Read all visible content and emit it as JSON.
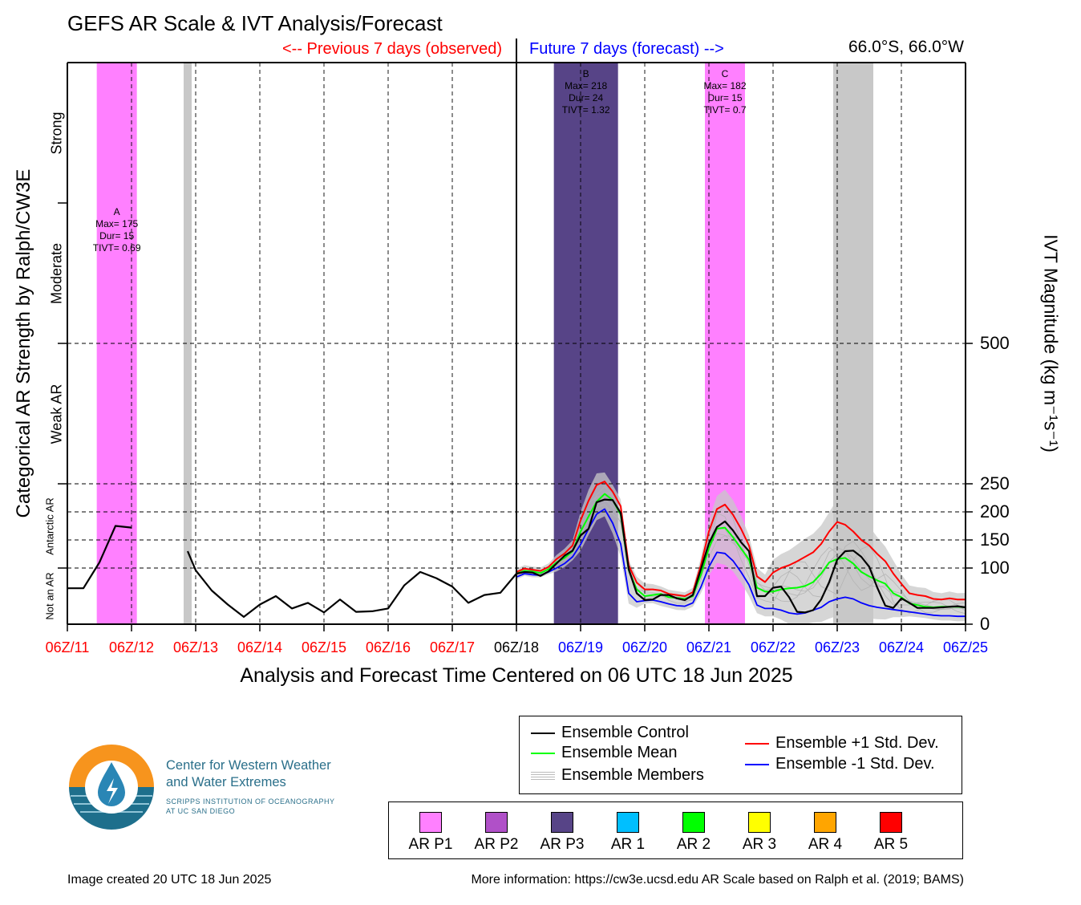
{
  "title": "GEFS AR Scale & IVT Analysis/Forecast",
  "previous_label": "<-- Previous 7 days (observed)",
  "future_label": "Future 7 days (forecast) -->",
  "location": "66.0°S, 66.0°W",
  "footer": {
    "created": "Image created 20 UTC 18 Jun 2025",
    "more_info": "More information: https://cw3e.ucsd.edu AR Scale based on Ralph et al. (2019; BAMS)"
  },
  "logo": {
    "name_line1": "Center for Western Weather",
    "name_line2": "and Water Extremes",
    "sub_line1": "SCRIPPS INSTITUTION OF OCEANOGRAPHY",
    "sub_line2": "AT UC SAN DIEGO"
  },
  "legend": {
    "control": "Ensemble Control",
    "mean": "Ensemble Mean",
    "members": "Ensemble Members",
    "plus_std": "Ensemble +1 Std. Dev.",
    "minus_std": "Ensemble -1 Std. Dev."
  },
  "scale_legend": [
    {
      "label": "AR P1",
      "color": "#ff80ff"
    },
    {
      "label": "AR P2",
      "color": "#b050c8"
    },
    {
      "label": "AR P3",
      "color": "#574487"
    },
    {
      "label": "AR 1",
      "color": "#00bfff"
    },
    {
      "label": "AR 2",
      "color": "#00ff00"
    },
    {
      "label": "AR 3",
      "color": "#ffff00"
    },
    {
      "label": "AR 4",
      "color": "#ffa500"
    },
    {
      "label": "AR 5",
      "color": "#ff0000"
    }
  ],
  "colors": {
    "observed_axis": "#ff0000",
    "forecast_axis": "#0000ff",
    "control": "#000000",
    "mean": "#00ff00",
    "plus_std": "#ff0000",
    "minus_std": "#0000ff",
    "members": "#b4b4b4",
    "spread": "#c8c8c8",
    "no_ar_shade": "#c8c8c8"
  },
  "chart_data": {
    "type": "line",
    "title": "GEFS AR Scale & IVT Analysis/Forecast",
    "xlabel": "Analysis and Forecast Time Centered on 06 UTC 18 Jun 2025",
    "ylabel_left": "Categorical AR Strength by Ralph/CW3E",
    "ylabel_right": "IVT Magnitude (kg m⁻¹s⁻¹)",
    "x_unit": "hours relative to 06Z/18",
    "xlim": [
      -168,
      168
    ],
    "ylim": [
      0,
      1000
    ],
    "y_ticks": [
      0,
      100,
      150,
      200,
      250,
      500
    ],
    "x_ticks": [
      {
        "t": -168,
        "label": "06Z/11",
        "period": "observed"
      },
      {
        "t": -144,
        "label": "06Z/12",
        "period": "observed"
      },
      {
        "t": -120,
        "label": "06Z/13",
        "period": "observed"
      },
      {
        "t": -96,
        "label": "06Z/14",
        "period": "observed"
      },
      {
        "t": -72,
        "label": "06Z/15",
        "period": "observed"
      },
      {
        "t": -48,
        "label": "06Z/16",
        "period": "observed"
      },
      {
        "t": -24,
        "label": "06Z/17",
        "period": "observed"
      },
      {
        "t": 0,
        "label": "06Z/18",
        "period": "now"
      },
      {
        "t": 24,
        "label": "06Z/19",
        "period": "forecast"
      },
      {
        "t": 48,
        "label": "06Z/20",
        "period": "forecast"
      },
      {
        "t": 72,
        "label": "06Z/21",
        "period": "forecast"
      },
      {
        "t": 96,
        "label": "06Z/22",
        "period": "forecast"
      },
      {
        "t": 120,
        "label": "06Z/23",
        "period": "forecast"
      },
      {
        "t": 144,
        "label": "06Z/24",
        "period": "forecast"
      },
      {
        "t": 168,
        "label": "06Z/25",
        "period": "forecast"
      }
    ],
    "categories": [
      {
        "label": "Not an AR",
        "small": true,
        "from": 0,
        "to": 100
      },
      {
        "label": "Antarctic AR",
        "small": true,
        "from": 100,
        "to": 250
      },
      {
        "label": "Weak AR",
        "small": false,
        "from": 250,
        "to": 500
      },
      {
        "label": "Moderate",
        "small": false,
        "from": 500,
        "to": 750
      },
      {
        "label": "Strong",
        "small": false,
        "from": 750,
        "to": 1000
      }
    ],
    "ar_periods": [
      {
        "id": "A",
        "start": -157,
        "end": -142,
        "level": "AR P1",
        "color": "#ff80ff",
        "max": "Max= 175",
        "dur": "Dur= 15",
        "tivt": "TIVT= 0.69",
        "label_y": 745
      },
      {
        "id": "B",
        "start": 14,
        "end": 38,
        "level": "AR P3",
        "color": "#574487",
        "max": "Max= 218",
        "dur": "Dur= 24",
        "tivt": "TIVT= 1.32",
        "label_y": 990
      },
      {
        "id": "C",
        "start": 70.5,
        "end": 85.5,
        "level": "AR P1",
        "color": "#ff80ff",
        "max": "Max= 182",
        "dur": "Dur= 15",
        "tivt": "TIVT= 0.7",
        "label_y": 990
      }
    ],
    "no_ar_shades": [
      {
        "start": -124.5,
        "end": -121.5
      },
      {
        "start": 118.5,
        "end": 133.5
      }
    ],
    "series": [
      {
        "name": "Ensemble Control",
        "color": "#000000",
        "width": 2.2,
        "x": [
          -168,
          -162,
          -156,
          -150,
          -144,
          null,
          -123,
          -120,
          -114,
          -108,
          -102,
          -96,
          -90,
          -84,
          -78,
          -72,
          -66,
          -60,
          -54,
          -48,
          -42,
          -36,
          -30,
          -24,
          -18,
          -12,
          -6,
          0,
          3,
          6,
          9,
          12,
          15,
          18,
          21,
          24,
          27,
          30,
          33,
          36,
          39,
          42,
          45,
          48,
          51,
          54,
          57,
          60,
          63,
          66,
          69,
          72,
          75,
          78,
          81,
          84,
          87,
          90,
          93,
          96,
          99,
          102,
          105,
          108,
          111,
          114,
          117,
          120,
          123,
          126,
          129,
          132,
          135,
          138,
          141,
          144,
          147,
          150,
          153,
          156,
          159,
          162,
          165,
          168
        ],
        "y": [
          64,
          64,
          110,
          175,
          172,
          null,
          130,
          96,
          60,
          35,
          13,
          35,
          50,
          28,
          38,
          21,
          44,
          22,
          23,
          28,
          69,
          93,
          82,
          67,
          38,
          52,
          56,
          90,
          93,
          92,
          86,
          94,
          108,
          122,
          131,
          158,
          170,
          217,
          222,
          221,
          198,
          98,
          55,
          43,
          44,
          52,
          52,
          46,
          43,
          52,
          98,
          144,
          173,
          183,
          167,
          146,
          130,
          50,
          50,
          65,
          67,
          48,
          22,
          21,
          25,
          44,
          75,
          115,
          130,
          131,
          120,
          102,
          65,
          33,
          29,
          46,
          38,
          29,
          29,
          29,
          30,
          31,
          32,
          30
        ]
      },
      {
        "name": "Ensemble Mean",
        "color": "#00ff00",
        "width": 2,
        "x": [
          0,
          3,
          6,
          9,
          12,
          15,
          18,
          21,
          24,
          27,
          30,
          33,
          36,
          39,
          42,
          45,
          48,
          51,
          54,
          57,
          60,
          63,
          66,
          69,
          72,
          75,
          78,
          81,
          84,
          87,
          90,
          93,
          96,
          99,
          102,
          105,
          108,
          111,
          114,
          117,
          120,
          123,
          126,
          129,
          132,
          135,
          138,
          141,
          144,
          147,
          150,
          153,
          156,
          159,
          162,
          165,
          168
        ],
        "y": [
          90,
          95,
          94,
          91,
          98,
          110,
          118,
          130,
          165,
          192,
          218,
          232,
          221,
          195,
          96,
          62,
          50,
          52,
          54,
          48,
          47,
          45,
          50,
          88,
          135,
          170,
          172,
          155,
          135,
          115,
          65,
          58,
          58,
          62,
          64,
          65,
          68,
          75,
          90,
          110,
          116,
          118,
          108,
          93,
          85,
          78,
          72,
          55,
          48,
          37,
          34,
          31,
          30,
          31,
          31,
          31,
          30
        ]
      },
      {
        "name": "Ensemble +1 Std. Dev.",
        "color": "#ff0000",
        "width": 2,
        "x": [
          0,
          3,
          6,
          9,
          12,
          15,
          18,
          21,
          24,
          27,
          30,
          33,
          36,
          39,
          42,
          45,
          48,
          51,
          54,
          57,
          60,
          63,
          66,
          69,
          72,
          75,
          78,
          81,
          84,
          87,
          90,
          93,
          96,
          99,
          102,
          105,
          108,
          111,
          114,
          117,
          120,
          123,
          126,
          129,
          132,
          135,
          138,
          141,
          144,
          147,
          150,
          153,
          156,
          159,
          162,
          165,
          168
        ],
        "y": [
          93,
          99,
          97,
          95,
          102,
          116,
          126,
          140,
          185,
          220,
          248,
          254,
          236,
          210,
          105,
          74,
          62,
          62,
          60,
          54,
          52,
          50,
          57,
          105,
          165,
          205,
          213,
          195,
          170,
          140,
          85,
          75,
          92,
          100,
          105,
          112,
          120,
          128,
          143,
          165,
          182,
          177,
          165,
          150,
          140,
          125,
          112,
          90,
          72,
          55,
          52,
          50,
          45,
          44,
          46,
          44,
          44
        ]
      },
      {
        "name": "Ensemble -1 Std. Dev.",
        "color": "#0000ff",
        "width": 1.8,
        "x": [
          0,
          3,
          6,
          9,
          12,
          15,
          18,
          21,
          24,
          27,
          30,
          33,
          36,
          39,
          42,
          45,
          48,
          51,
          54,
          57,
          60,
          63,
          66,
          69,
          72,
          75,
          78,
          81,
          84,
          87,
          90,
          93,
          96,
          99,
          102,
          105,
          108,
          111,
          114,
          117,
          120,
          123,
          126,
          129,
          132,
          135,
          138,
          141,
          144,
          147,
          150,
          153,
          156,
          159,
          162,
          165,
          168
        ],
        "y": [
          84,
          90,
          88,
          87,
          93,
          100,
          108,
          120,
          142,
          170,
          196,
          205,
          180,
          143,
          55,
          40,
          42,
          43,
          40,
          36,
          33,
          32,
          38,
          66,
          102,
          128,
          126,
          113,
          93,
          70,
          34,
          28,
          28,
          25,
          20,
          18,
          20,
          25,
          30,
          40,
          45,
          48,
          45,
          38,
          33,
          30,
          28,
          26,
          24,
          22,
          20,
          18,
          16,
          15,
          15,
          14,
          14
        ]
      }
    ]
  }
}
